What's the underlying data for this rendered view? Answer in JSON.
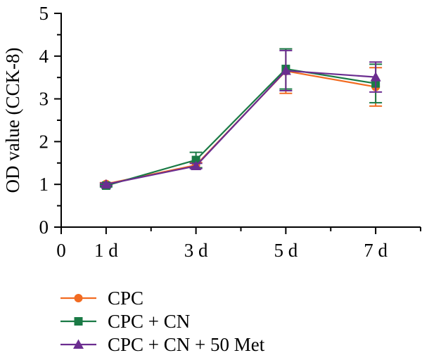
{
  "chart_data": {
    "type": "line",
    "title": "",
    "xlabel": "",
    "ylabel": "OD value (CCK-8)",
    "x_origin_label": "0",
    "categories": [
      "1 d",
      "3 d",
      "5 d",
      "7 d"
    ],
    "x_positions": [
      1,
      3,
      5,
      7
    ],
    "xlim": [
      0,
      8
    ],
    "ylim": [
      0,
      5
    ],
    "y_ticks": [
      0,
      1,
      2,
      3,
      4,
      5
    ],
    "grid": false,
    "legend_position": "bottom-left",
    "series": [
      {
        "name": "CPC",
        "marker": "circle",
        "color": "#f26b21",
        "values": [
          1.01,
          1.45,
          3.65,
          3.28
        ],
        "errors": [
          0.03,
          0.06,
          0.52,
          0.45
        ]
      },
      {
        "name": "CPC + CN",
        "marker": "square",
        "color": "#1a7a45",
        "values": [
          0.97,
          1.57,
          3.7,
          3.36
        ],
        "errors": [
          0.03,
          0.18,
          0.47,
          0.45
        ]
      },
      {
        "name": "CPC + CN + 50 Met",
        "marker": "triangle",
        "color": "#6b2d90",
        "values": [
          1.0,
          1.43,
          3.66,
          3.51
        ],
        "errors": [
          0.03,
          0.06,
          0.47,
          0.35
        ]
      }
    ]
  }
}
